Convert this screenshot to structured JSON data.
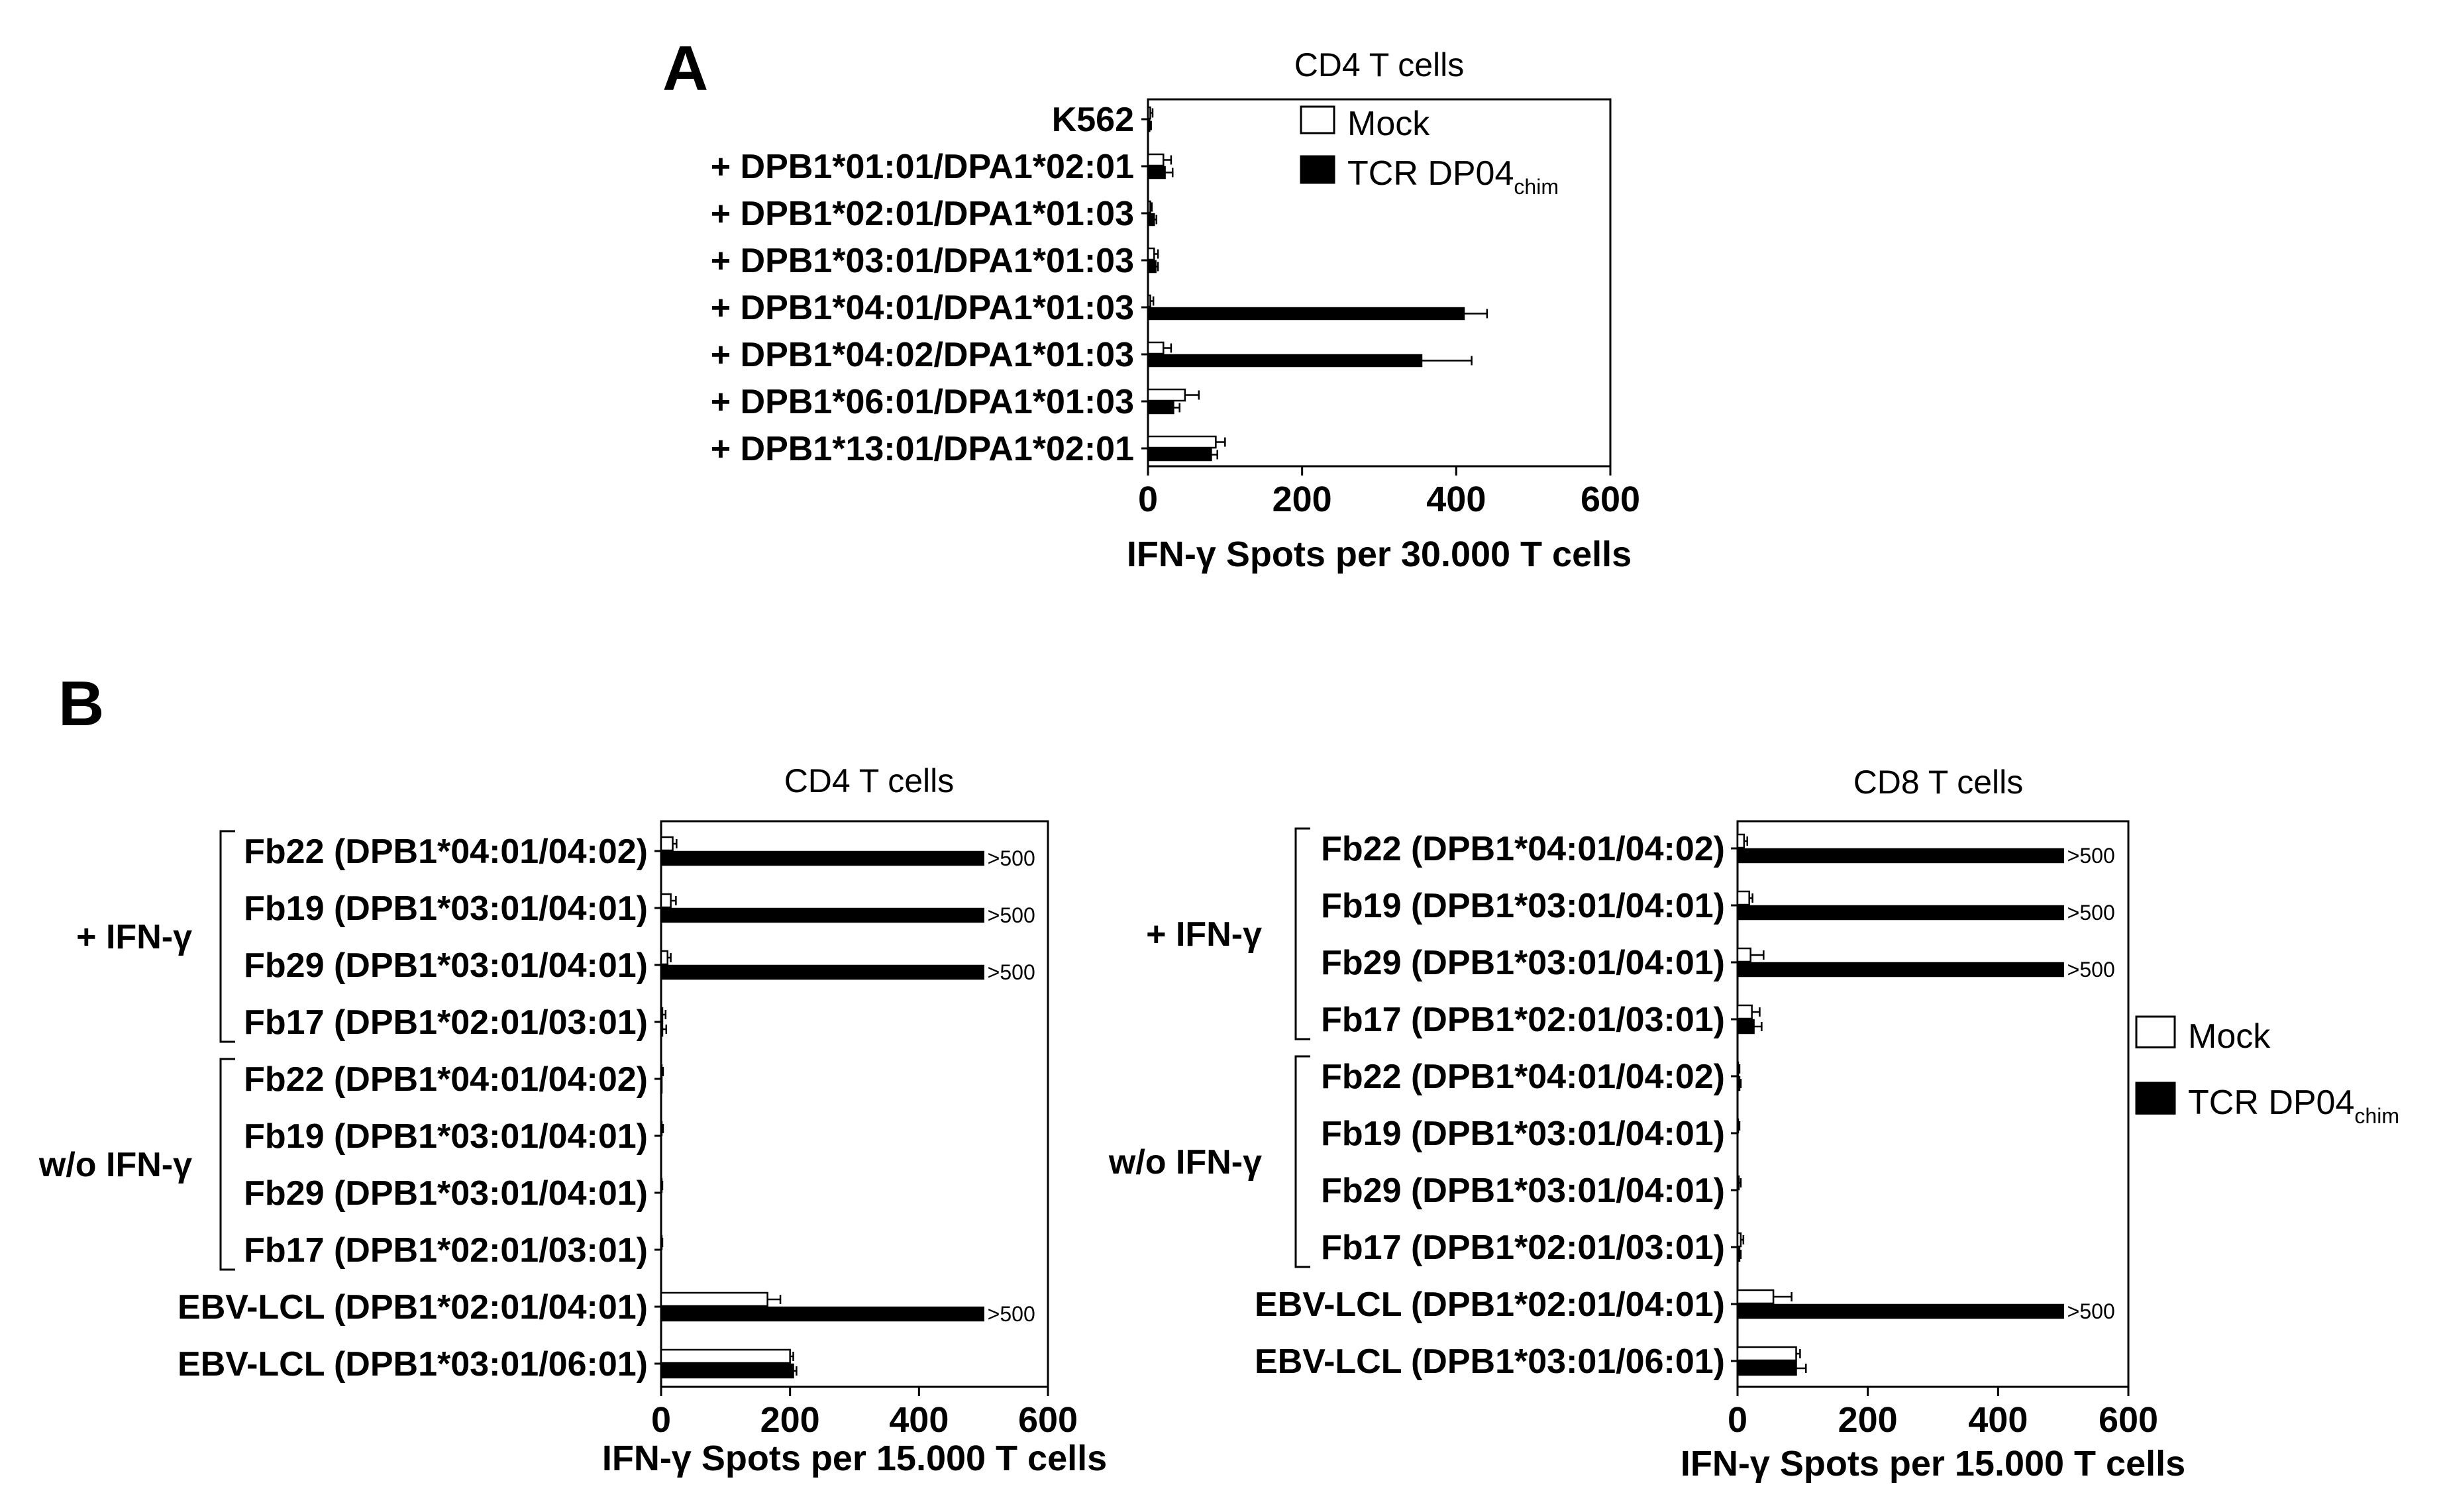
{
  "chart_data": [
    {
      "panel": "A",
      "type": "bar",
      "orientation": "horizontal",
      "title": "CD4 T cells",
      "xlabel": "IFN-γ Spots per 30.000 T cells",
      "xlim": [
        0,
        600
      ],
      "xticks": [
        0,
        200,
        400,
        600
      ],
      "categories": [
        "K562",
        "+ DPB1*01:01/DPA1*02:01",
        "+ DPB1*02:01/DPA1*01:03",
        "+ DPB1*03:01/DPA1*01:03",
        "+ DPB1*04:01/DPA1*01:03",
        "+ DPB1*04:02/DPA1*01:03",
        "+ DPB1*06:01/DPA1*01:03",
        "+ DPB1*13:01/DPA1*02:01"
      ],
      "series": [
        {
          "name": "Mock",
          "color": "#ffffff",
          "values": [
            3,
            20,
            3,
            8,
            3,
            20,
            48,
            88
          ],
          "errors": [
            3,
            10,
            2,
            5,
            4,
            10,
            18,
            12
          ]
        },
        {
          "name": "TCR DP04chim",
          "color": "#000000",
          "values": [
            2,
            22,
            8,
            10,
            410,
            355,
            33,
            82
          ],
          "errors": [
            2,
            10,
            3,
            3,
            30,
            65,
            8,
            8
          ]
        }
      ],
      "legend": {
        "position": "top-right",
        "items": [
          {
            "text": "Mock"
          },
          {
            "text": "TCR DP04",
            "sub": "chim"
          }
        ]
      },
      "grid": false
    },
    {
      "panel": "B",
      "type": "bar",
      "orientation": "horizontal",
      "title": "CD4 T cells",
      "xlabel": "IFN-γ Spots per 15.000 T cells",
      "xlim": [
        0,
        600
      ],
      "xticks": [
        0,
        200,
        400,
        600
      ],
      "categories": [
        "Fb22 (DPB1*04:01/04:02)",
        "Fb19 (DPB1*03:01/04:01)",
        "Fb29 (DPB1*03:01/04:01)",
        "Fb17 (DPB1*02:01/03:01)",
        "Fb22 (DPB1*04:01/04:02)",
        "Fb19 (DPB1*03:01/04:01)",
        "Fb29 (DPB1*03:01/04:01)",
        "Fb17 (DPB1*02:01/03:01)",
        "EBV-LCL (DPB1*02:01/04:01)",
        "EBV-LCL (DPB1*03:01/06:01)"
      ],
      "groups": [
        {
          "label": "+ IFN-γ",
          "from": 0,
          "to": 3
        },
        {
          "label": "w/o IFN-γ",
          "from": 4,
          "to": 7
        }
      ],
      "series": [
        {
          "name": "Mock",
          "color": "#ffffff",
          "values": [
            18,
            15,
            10,
            2,
            1,
            1,
            1,
            1,
            165,
            200
          ],
          "errors": [
            6,
            8,
            5,
            5,
            2,
            2,
            1,
            1,
            20,
            5
          ]
        },
        {
          "name": "TCR DP04chim",
          "color": "#000000",
          "values": [
            500,
            500,
            500,
            2,
            1,
            0,
            0,
            0,
            500,
            205
          ],
          "errors": [
            0,
            0,
            0,
            6,
            0,
            0,
            0,
            0,
            0,
            5
          ]
        }
      ],
      "overflow_labels": [
        {
          "row": 0,
          "text": ">500"
        },
        {
          "row": 1,
          "text": ">500"
        },
        {
          "row": 2,
          "text": ">500"
        },
        {
          "row": 8,
          "text": ">500"
        }
      ],
      "grid": false
    },
    {
      "panel": "",
      "type": "bar",
      "orientation": "horizontal",
      "title": "CD8 T cells",
      "xlabel": "IFN-γ Spots per 15.000 T cells",
      "xlim": [
        0,
        600
      ],
      "xticks": [
        0,
        200,
        400,
        600
      ],
      "categories": [
        "Fb22 (DPB1*04:01/04:02)",
        "Fb19 (DPB1*03:01/04:01)",
        "Fb29 (DPB1*03:01/04:01)",
        "Fb17 (DPB1*02:01/03:01)",
        "Fb22 (DPB1*04:01/04:02)",
        "Fb19 (DPB1*03:01/04:01)",
        "Fb29 (DPB1*03:01/04:01)",
        "Fb17 (DPB1*02:01/03:01)",
        "EBV-LCL (DPB1*02:01/04:01)",
        "EBV-LCL (DPB1*03:01/06:01)"
      ],
      "groups": [
        {
          "label": "+ IFN-γ",
          "from": 0,
          "to": 3
        },
        {
          "label": "w/o IFN-γ",
          "from": 4,
          "to": 7
        }
      ],
      "series": [
        {
          "name": "Mock",
          "color": "#ffffff",
          "values": [
            10,
            18,
            20,
            22,
            1,
            1,
            2,
            5,
            55,
            90
          ],
          "errors": [
            5,
            5,
            20,
            12,
            2,
            2,
            3,
            4,
            28,
            6
          ]
        },
        {
          "name": "TCR DP04chim",
          "color": "#000000",
          "values": [
            500,
            500,
            500,
            25,
            3,
            0,
            0,
            3,
            500,
            90
          ],
          "errors": [
            0,
            0,
            0,
            12,
            2,
            0,
            0,
            2,
            0,
            15
          ]
        }
      ],
      "overflow_labels": [
        {
          "row": 0,
          "text": ">500"
        },
        {
          "row": 1,
          "text": ">500"
        },
        {
          "row": 2,
          "text": ">500"
        },
        {
          "row": 8,
          "text": ">500"
        }
      ],
      "legend": {
        "position": "right",
        "items": [
          {
            "text": "Mock"
          },
          {
            "text": "TCR DP04",
            "sub": "chim"
          }
        ]
      },
      "grid": false
    }
  ]
}
